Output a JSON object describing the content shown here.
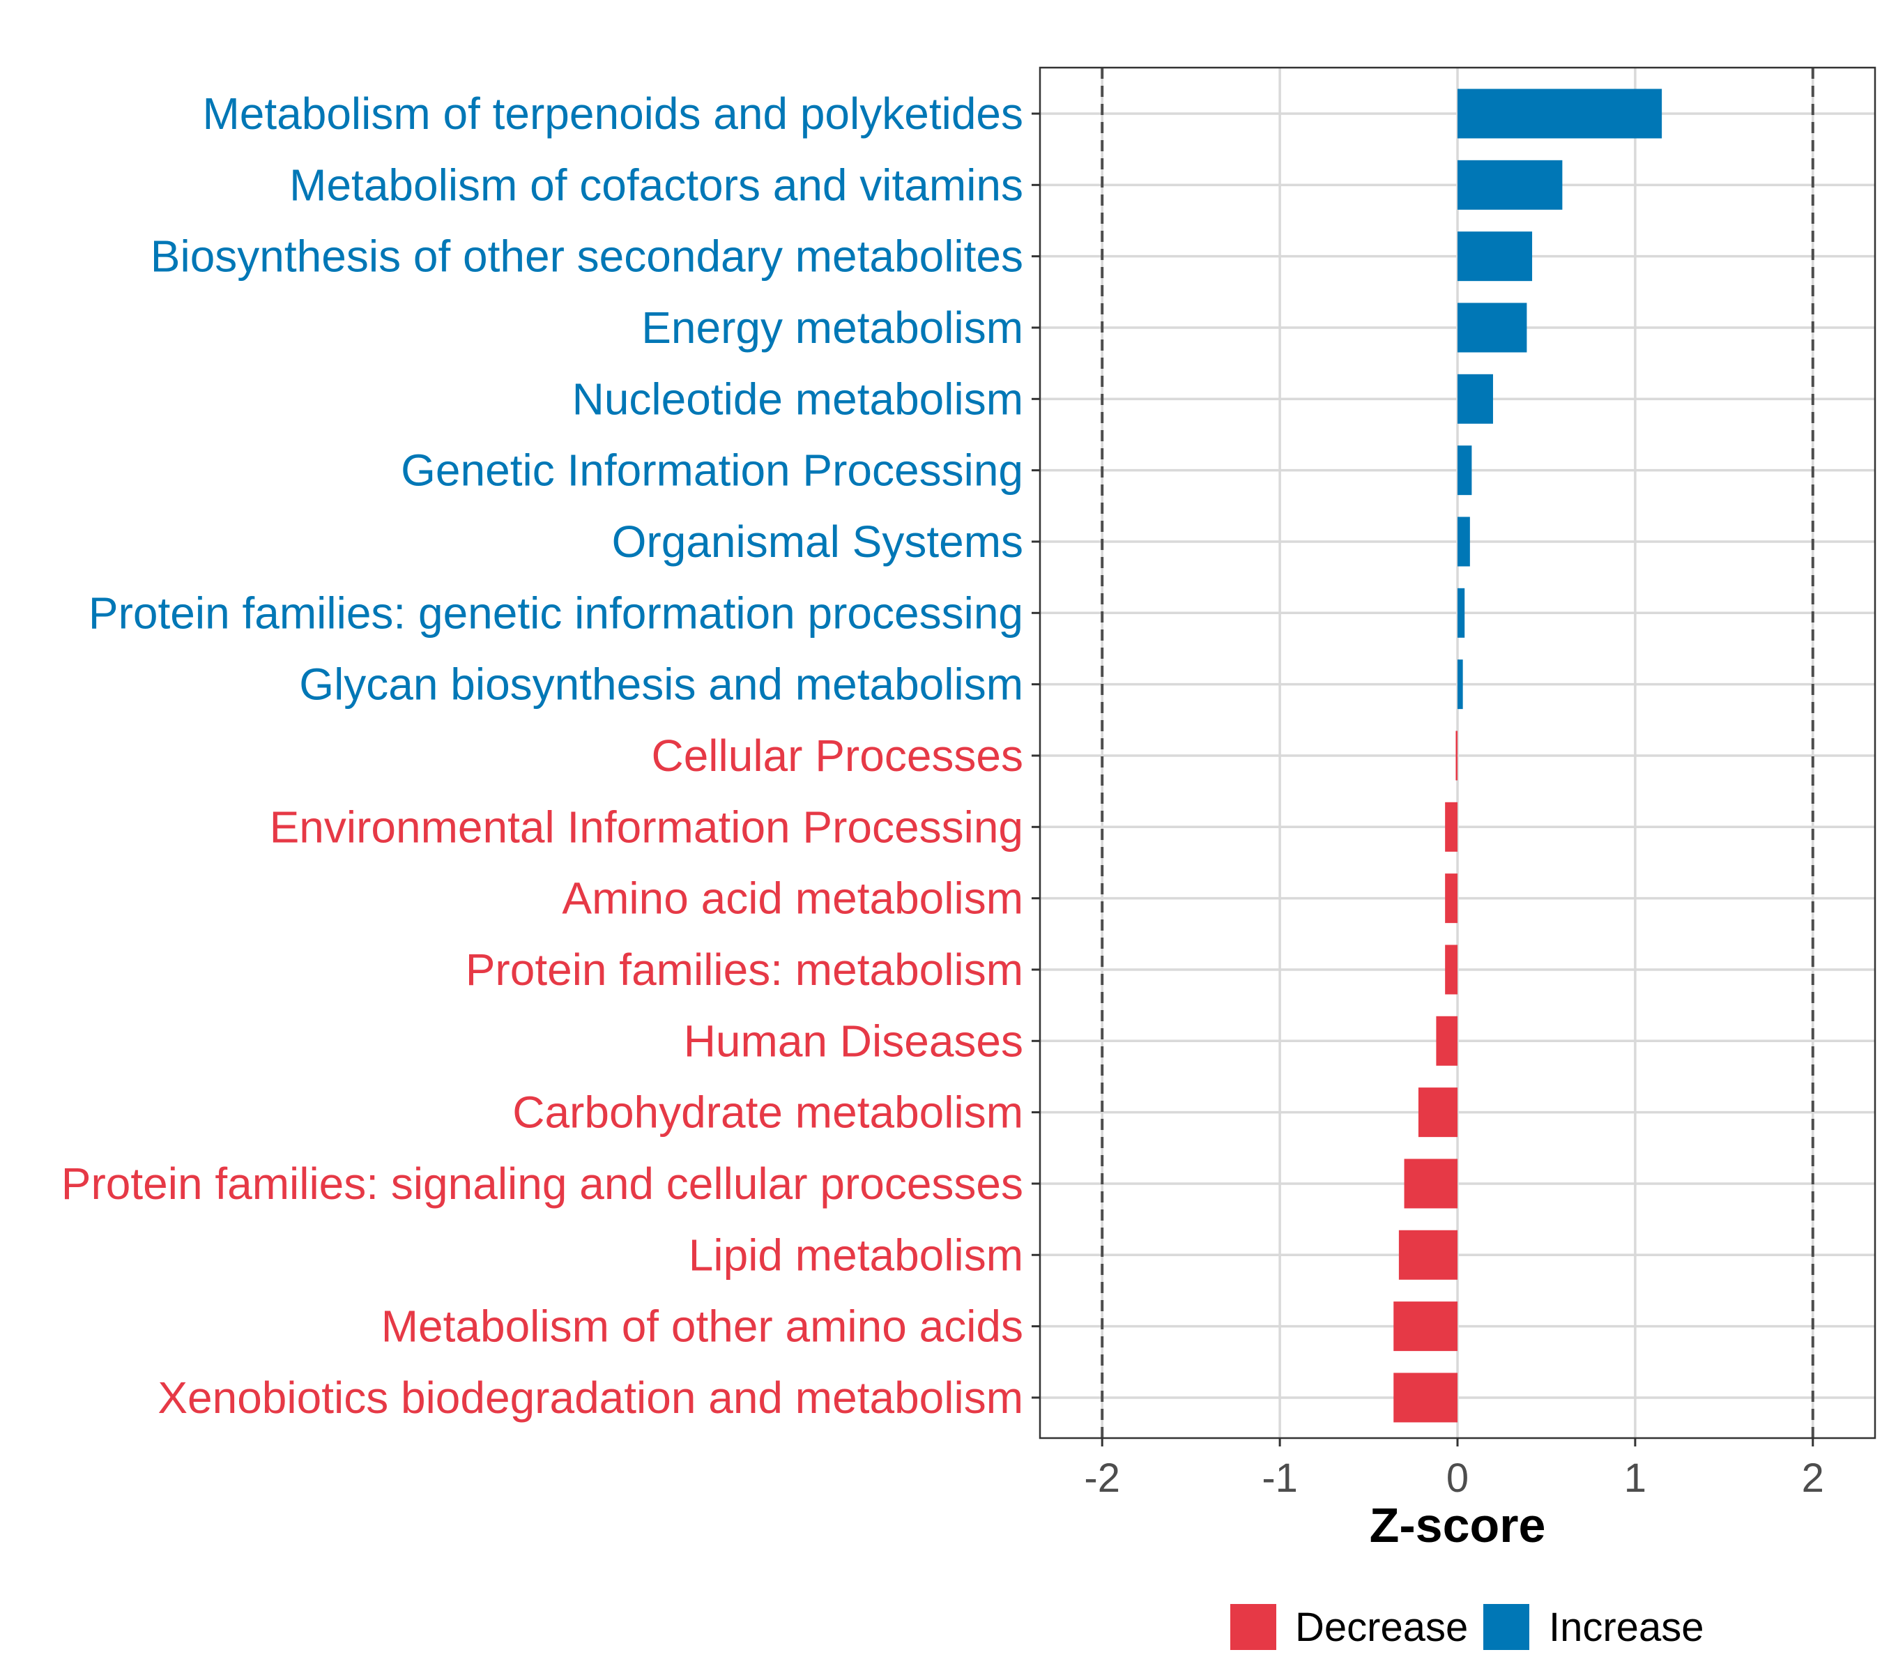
{
  "chart_data": {
    "type": "bar",
    "orientation": "horizontal",
    "title": "",
    "xlabel": "Z-score",
    "ylabel": "",
    "xlim": [
      -2.35,
      2.35
    ],
    "x_ticks": [
      -2,
      -1,
      0,
      1,
      2
    ],
    "x_tick_labels": [
      "-2",
      "-1",
      "0",
      "1",
      "2"
    ],
    "reference_lines": [
      -2,
      2
    ],
    "grid": true,
    "legend_position": "bottom",
    "colors": {
      "Decrease": "#E63946",
      "Increase": "#0077B6"
    },
    "categories": [
      "Metabolism of terpenoids and polyketides",
      "Metabolism of cofactors and vitamins",
      "Biosynthesis of other secondary metabolites",
      "Energy metabolism",
      "Nucleotide metabolism",
      "Genetic Information Processing",
      "Organismal Systems",
      "Protein families: genetic information processing",
      "Glycan biosynthesis and metabolism",
      "Cellular Processes",
      "Environmental Information Processing",
      "Amino acid metabolism",
      "Protein families: metabolism",
      "Human Diseases",
      "Carbohydrate metabolism",
      "Protein families: signaling and cellular processes",
      "Lipid metabolism",
      "Metabolism of other amino acids",
      "Xenobiotics biodegradation and metabolism"
    ],
    "values": [
      1.15,
      0.59,
      0.42,
      0.39,
      0.2,
      0.08,
      0.07,
      0.04,
      0.03,
      -0.01,
      -0.07,
      -0.07,
      -0.07,
      -0.12,
      -0.22,
      -0.3,
      -0.33,
      -0.36,
      -0.36
    ],
    "groups": [
      "Increase",
      "Increase",
      "Increase",
      "Increase",
      "Increase",
      "Increase",
      "Increase",
      "Increase",
      "Increase",
      "Decrease",
      "Decrease",
      "Decrease",
      "Decrease",
      "Decrease",
      "Decrease",
      "Decrease",
      "Decrease",
      "Decrease",
      "Decrease"
    ],
    "legend": [
      {
        "name": "Decrease",
        "color": "#E63946"
      },
      {
        "name": "Increase",
        "color": "#0077B6"
      }
    ]
  }
}
